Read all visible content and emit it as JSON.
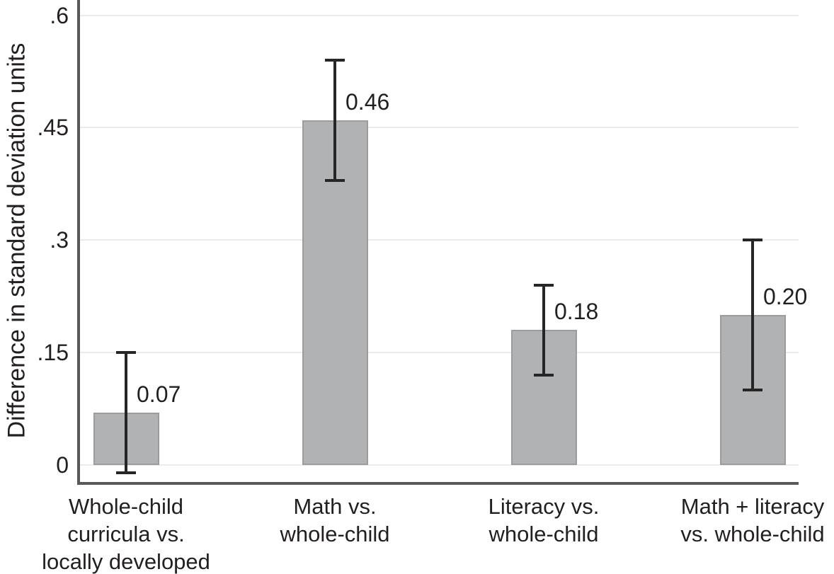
{
  "chart_data": {
    "type": "bar",
    "title": "",
    "xlabel": "",
    "ylabel": "Difference in standard deviation units",
    "ylim": [
      -0.025,
      0.62
    ],
    "yticks": [
      0,
      0.15,
      0.3,
      0.45,
      0.6
    ],
    "ytick_labels": [
      "0",
      ".15",
      ".3",
      ".45",
      ".6"
    ],
    "grid": "horizontal gridlines at each y tick",
    "legend": "none",
    "categories": [
      {
        "lines": [
          "Whole-child",
          "curricula vs.",
          "locally developed"
        ]
      },
      {
        "lines": [
          "Math vs.",
          "whole-child"
        ]
      },
      {
        "lines": [
          "Literacy vs.",
          "whole-child"
        ]
      },
      {
        "lines": [
          "Math + literacy",
          "vs. whole-child"
        ]
      }
    ],
    "series": [
      {
        "name": "Difference in standard deviation units",
        "values": [
          0.07,
          0.46,
          0.18,
          0.2
        ],
        "value_labels": [
          "0.07",
          "0.46",
          "0.18",
          "0.20"
        ],
        "ci_low": [
          -0.01,
          0.38,
          0.12,
          0.1
        ],
        "ci_high": [
          0.15,
          0.54,
          0.24,
          0.3
        ]
      }
    ],
    "colors": {
      "bar_fill": "#b1b2b4",
      "bar_border": "#9b9c9e",
      "error_bar": "#262626",
      "axis_line": "#57585a",
      "gridline": "#ebebeb",
      "text": "#231f20",
      "background": "#ffffff"
    }
  }
}
